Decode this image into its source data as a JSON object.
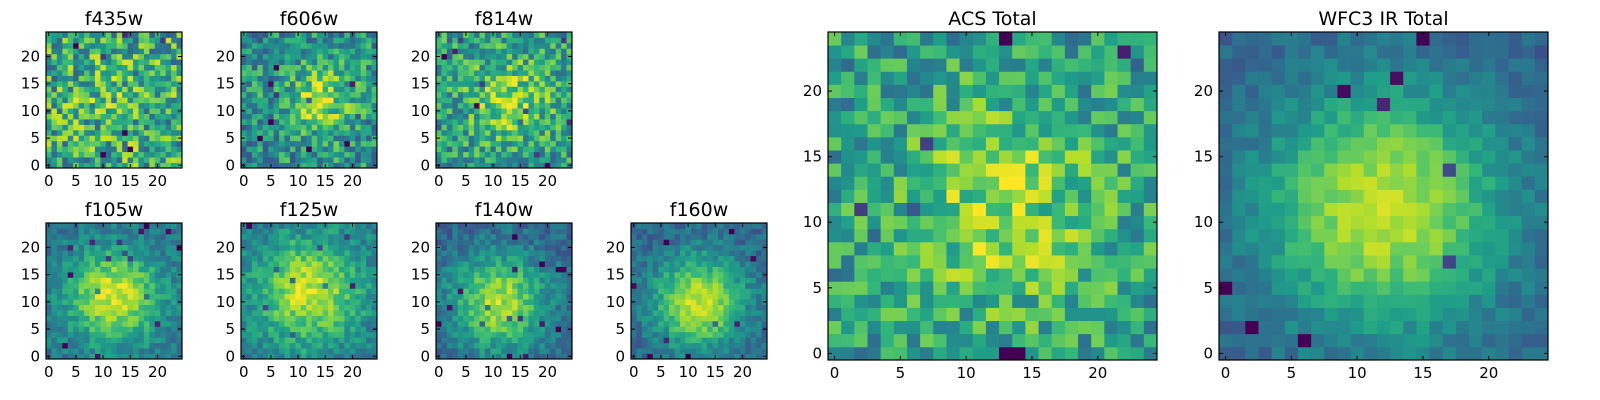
{
  "chart_data": [
    {
      "type": "heatmap",
      "title": "f435w",
      "grid": "25x25",
      "xlim": [
        0,
        24
      ],
      "ylim": [
        0,
        24
      ],
      "xticks": [
        "0",
        "5",
        "10",
        "15",
        "20"
      ],
      "yticks": [
        "0",
        "5",
        "10",
        "15",
        "20"
      ],
      "profile": {
        "peak_x": 12,
        "peak_y": 12,
        "width": 6,
        "amplitude": 0.08,
        "base": 0.6,
        "noise": 0.32,
        "seed": 11
      }
    },
    {
      "type": "heatmap",
      "title": "f606w",
      "grid": "25x25",
      "xlim": [
        0,
        24
      ],
      "ylim": [
        0,
        24
      ],
      "xticks": [
        "0",
        "5",
        "10",
        "15",
        "20"
      ],
      "yticks": [
        "0",
        "5",
        "10",
        "15",
        "20"
      ],
      "profile": {
        "peak_x": 14,
        "peak_y": 12,
        "width": 4.5,
        "amplitude": 0.35,
        "base": 0.5,
        "noise": 0.25,
        "seed": 23
      }
    },
    {
      "type": "heatmap",
      "title": "f814w",
      "grid": "25x25",
      "xlim": [
        0,
        24
      ],
      "ylim": [
        0,
        24
      ],
      "xticks": [
        "0",
        "5",
        "10",
        "15",
        "20"
      ],
      "yticks": [
        "0",
        "5",
        "10",
        "15",
        "20"
      ],
      "profile": {
        "peak_x": 13,
        "peak_y": 12,
        "width": 5,
        "amplitude": 0.3,
        "base": 0.55,
        "noise": 0.25,
        "seed": 37
      }
    },
    {
      "type": "heatmap",
      "title": "f105w",
      "grid": "25x25",
      "xlim": [
        0,
        24
      ],
      "ylim": [
        0,
        24
      ],
      "xticks": [
        "0",
        "5",
        "10",
        "15",
        "20"
      ],
      "yticks": [
        "0",
        "5",
        "10",
        "15",
        "20"
      ],
      "profile": {
        "peak_x": 12,
        "peak_y": 11,
        "width": 6,
        "amplitude": 0.55,
        "base": 0.38,
        "noise": 0.12,
        "seed": 41
      }
    },
    {
      "type": "heatmap",
      "title": "f125w",
      "grid": "25x25",
      "xlim": [
        0,
        24
      ],
      "ylim": [
        0,
        24
      ],
      "xticks": [
        "0",
        "5",
        "10",
        "15",
        "20"
      ],
      "yticks": [
        "0",
        "5",
        "10",
        "15",
        "20"
      ],
      "profile": {
        "peak_x": 12,
        "peak_y": 12,
        "width": 6.5,
        "amplitude": 0.5,
        "base": 0.42,
        "noise": 0.13,
        "seed": 53
      }
    },
    {
      "type": "heatmap",
      "title": "f140w",
      "grid": "25x25",
      "xlim": [
        0,
        24
      ],
      "ylim": [
        0,
        24
      ],
      "xticks": [
        "0",
        "5",
        "10",
        "15",
        "20"
      ],
      "yticks": [
        "0",
        "5",
        "10",
        "15",
        "20"
      ],
      "profile": {
        "peak_x": 11,
        "peak_y": 10,
        "width": 6,
        "amplitude": 0.55,
        "base": 0.33,
        "noise": 0.12,
        "seed": 67
      }
    },
    {
      "type": "heatmap",
      "title": "f160w",
      "grid": "25x25",
      "xlim": [
        0,
        24
      ],
      "ylim": [
        0,
        24
      ],
      "xticks": [
        "0",
        "5",
        "10",
        "15",
        "20"
      ],
      "yticks": [
        "0",
        "5",
        "10",
        "15",
        "20"
      ],
      "profile": {
        "peak_x": 12,
        "peak_y": 10,
        "width": 6,
        "amplitude": 0.6,
        "base": 0.32,
        "noise": 0.11,
        "seed": 79
      }
    },
    {
      "type": "heatmap",
      "title": "ACS Total",
      "grid": "25x25",
      "xlim": [
        0,
        24
      ],
      "ylim": [
        0,
        24
      ],
      "xticks": [
        "0",
        "5",
        "10",
        "15",
        "20"
      ],
      "yticks": [
        "0",
        "5",
        "10",
        "15",
        "20"
      ],
      "profile": {
        "peak_x": 13,
        "peak_y": 11,
        "width": 5.5,
        "amplitude": 0.3,
        "base": 0.55,
        "noise": 0.22,
        "seed": 97
      }
    },
    {
      "type": "heatmap",
      "title": "WFC3 IR Total",
      "grid": "25x25",
      "xlim": [
        0,
        24
      ],
      "ylim": [
        0,
        24
      ],
      "xticks": [
        "0",
        "5",
        "10",
        "15",
        "20"
      ],
      "yticks": [
        "0",
        "5",
        "10",
        "15",
        "20"
      ],
      "profile": {
        "peak_x": 12,
        "peak_y": 11,
        "width": 6.5,
        "amplitude": 0.62,
        "base": 0.3,
        "noise": 0.08,
        "seed": 113
      }
    }
  ],
  "colors": {
    "colormap": "viridis",
    "axes_frame": "#000000",
    "background": "#ffffff"
  }
}
